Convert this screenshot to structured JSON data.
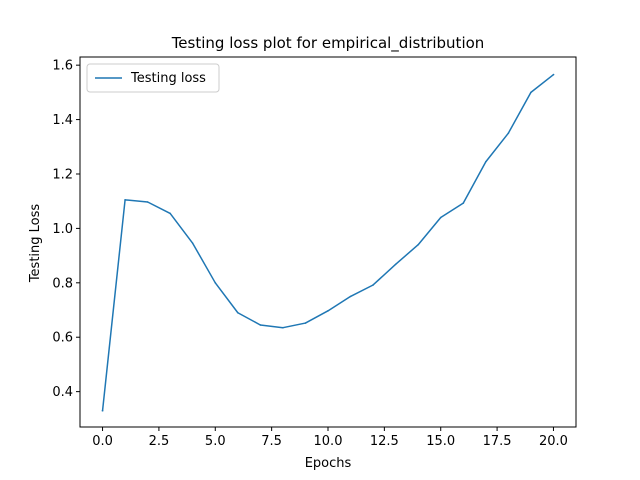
{
  "chart_data": {
    "type": "line",
    "title": "Testing loss plot for empirical_distribution",
    "xlabel": "Epochs",
    "ylabel": "Testing Loss",
    "xlim": [
      -1,
      21
    ],
    "ylim": [
      0.27,
      1.63
    ],
    "xticks": [
      0,
      2.5,
      5,
      7.5,
      10,
      12.5,
      15,
      17.5,
      20
    ],
    "xtick_labels": [
      "0.0",
      "2.5",
      "5.0",
      "7.5",
      "10.0",
      "12.5",
      "15.0",
      "17.5",
      "20.0"
    ],
    "yticks": [
      0.4,
      0.6,
      0.8,
      1.0,
      1.2,
      1.4,
      1.6
    ],
    "ytick_labels": [
      "0.4",
      "0.6",
      "0.8",
      "1.0",
      "1.2",
      "1.4",
      "1.6"
    ],
    "grid": false,
    "legend_position": "top-left",
    "series": [
      {
        "name": "Testing loss",
        "color": "#1f77b4",
        "x": [
          0,
          1,
          2,
          3,
          4,
          5,
          6,
          7,
          8,
          9,
          10,
          11,
          12,
          13,
          14,
          15,
          16,
          17,
          18,
          19,
          20
        ],
        "y": [
          0.33,
          1.105,
          1.097,
          1.055,
          0.945,
          0.8,
          0.69,
          0.645,
          0.635,
          0.652,
          0.697,
          0.75,
          0.792,
          0.868,
          0.94,
          1.04,
          1.093,
          1.245,
          1.35,
          1.5,
          1.565
        ]
      }
    ]
  }
}
